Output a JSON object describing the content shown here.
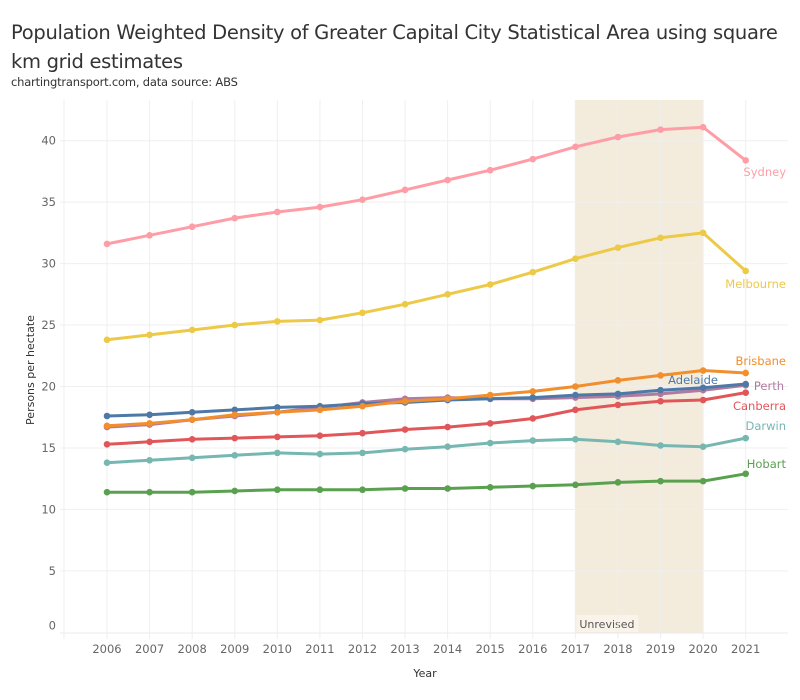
{
  "title": "Population Weighted Density of Greater Capital City Statistical Area using square km grid estimates",
  "subtitle": "chartingtransport.com, data source: ABS",
  "chart_data": {
    "type": "line",
    "title": "Population Weighted Density of Greater Capital City Statistical Area using square km grid estimates",
    "subtitle": "chartingtransport.com, data source: ABS",
    "xlabel": "Year",
    "ylabel": "Persons per hectate",
    "x": [
      2006,
      2007,
      2008,
      2009,
      2010,
      2011,
      2012,
      2013,
      2014,
      2015,
      2016,
      2017,
      2018,
      2019,
      2020,
      2021
    ],
    "ylim": [
      0,
      42
    ],
    "yticks": [
      0,
      5,
      10,
      15,
      20,
      25,
      30,
      35,
      40
    ],
    "grid": true,
    "legend": "inline labels at line ends (right)",
    "annotations": [
      {
        "type": "shaded-band",
        "x_start": 2017,
        "x_end": 2020,
        "label": "Unrevised",
        "color": "#F3EBDC"
      }
    ],
    "series": [
      {
        "name": "Sydney",
        "color": "#FF9DA7",
        "values": [
          31.6,
          32.3,
          33.0,
          33.7,
          34.2,
          34.6,
          35.2,
          36.0,
          36.8,
          37.6,
          38.5,
          39.5,
          40.3,
          40.9,
          41.1,
          38.4
        ]
      },
      {
        "name": "Melbourne",
        "color": "#EDC948",
        "values": [
          23.8,
          24.2,
          24.6,
          25.0,
          25.3,
          25.4,
          26.0,
          26.7,
          27.5,
          28.3,
          29.3,
          30.4,
          31.3,
          32.1,
          32.5,
          29.4
        ]
      },
      {
        "name": "Brisbane",
        "color": "#F28E2B",
        "values": [
          16.8,
          17.0,
          17.3,
          17.7,
          17.9,
          18.1,
          18.4,
          18.8,
          19.0,
          19.3,
          19.6,
          20.0,
          20.5,
          20.9,
          21.3,
          21.1
        ]
      },
      {
        "name": "Adelaide",
        "color": "#4E79A7",
        "values": [
          17.6,
          17.7,
          17.9,
          18.1,
          18.3,
          18.4,
          18.6,
          18.7,
          18.9,
          19.0,
          19.1,
          19.3,
          19.4,
          19.7,
          19.9,
          20.2
        ]
      },
      {
        "name": "Perth",
        "color": "#B07AA1",
        "values": [
          16.7,
          16.9,
          17.3,
          17.6,
          17.9,
          18.3,
          18.7,
          19.0,
          19.1,
          19.0,
          19.0,
          19.1,
          19.2,
          19.4,
          19.7,
          20.1
        ]
      },
      {
        "name": "Canberra",
        "color": "#E15759",
        "values": [
          15.3,
          15.5,
          15.7,
          15.8,
          15.9,
          16.0,
          16.2,
          16.5,
          16.7,
          17.0,
          17.4,
          18.1,
          18.5,
          18.8,
          18.9,
          19.5
        ]
      },
      {
        "name": "Darwin",
        "color": "#76B7B2",
        "values": [
          13.8,
          14.0,
          14.2,
          14.4,
          14.6,
          14.5,
          14.6,
          14.9,
          15.1,
          15.4,
          15.6,
          15.7,
          15.5,
          15.2,
          15.1,
          15.8
        ]
      },
      {
        "name": "Hobart",
        "color": "#59A14F",
        "values": [
          11.4,
          11.4,
          11.4,
          11.5,
          11.6,
          11.6,
          11.6,
          11.7,
          11.7,
          11.8,
          11.9,
          12.0,
          12.2,
          12.3,
          12.3,
          12.9
        ]
      }
    ]
  }
}
